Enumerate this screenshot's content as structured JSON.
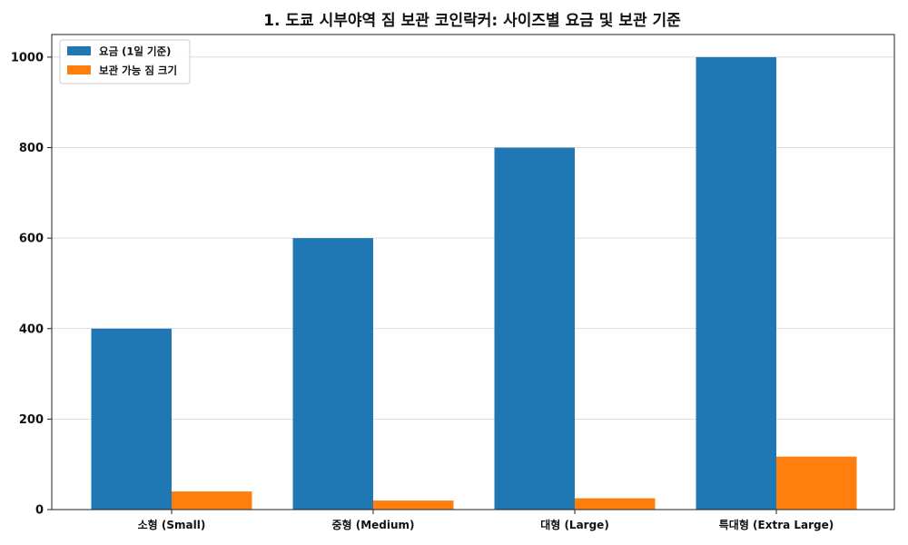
{
  "chart_data": {
    "type": "bar",
    "title": "1. 도쿄 시부야역 짐 보관 코인락커: 사이즈별 요금 및 보관 기준",
    "xlabel": "",
    "ylabel": "",
    "categories": [
      "소형 (Small)",
      "중형 (Medium)",
      "대형 (Large)",
      "특대형 (Extra Large)"
    ],
    "series": [
      {
        "name": "요금 (1일 기준)",
        "values": [
          400,
          600,
          800,
          1000
        ],
        "color": "#1f77b4"
      },
      {
        "name": "보관 가능 짐 크기",
        "values": [
          40,
          20,
          25,
          117
        ],
        "color": "#ff7f0e"
      }
    ],
    "ylim": [
      0,
      1050
    ],
    "yticks": [
      0,
      200,
      400,
      600,
      800,
      1000
    ],
    "grid": "horizontal",
    "legend": "top-left"
  }
}
